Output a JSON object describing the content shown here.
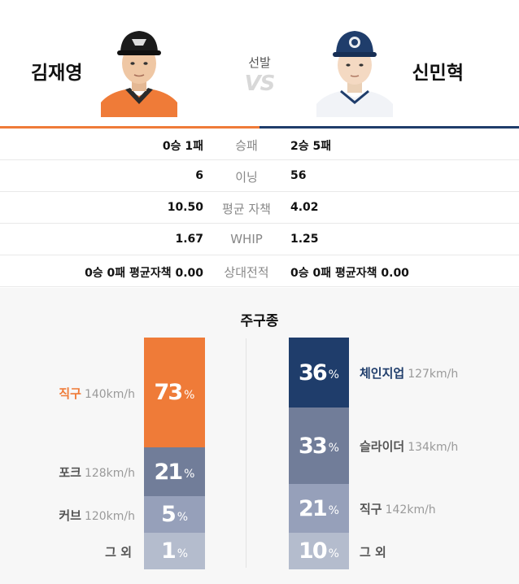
{
  "header": {
    "center_label": "선발",
    "vs_label": "VS",
    "left_player": {
      "name": "김재영",
      "team_color": "#ef7b38"
    },
    "right_player": {
      "name": "신민혁",
      "team_color": "#1f3d6b"
    }
  },
  "stats": [
    {
      "label": "승패",
      "left": "0승 1패",
      "right": "2승 5패"
    },
    {
      "label": "이닝",
      "left": "6",
      "right": "56"
    },
    {
      "label": "평균 자책",
      "left": "10.50",
      "right": "4.02"
    },
    {
      "label": "WHIP",
      "left": "1.67",
      "right": "1.25"
    },
    {
      "label": "상대전적",
      "left": "0승 0패 평균자책 0.00",
      "right": "0승 0패 평균자책 0.00"
    }
  ],
  "pitches": {
    "title": "주구종",
    "unit": "%",
    "left": [
      {
        "name": "직구",
        "speed": "140km/h",
        "percent": "73",
        "color": "#ef7b38",
        "label_color": "#ef7b38"
      },
      {
        "name": "포크",
        "speed": "128km/h",
        "percent": "21",
        "color": "#717d99",
        "label_color": "#555555"
      },
      {
        "name": "커브",
        "speed": "120km/h",
        "percent": "5",
        "color": "#96a0ba",
        "label_color": "#555555"
      },
      {
        "name": "그 외",
        "speed": "",
        "percent": "1",
        "color": "#b4bccd",
        "label_color": "#555555"
      }
    ],
    "right": [
      {
        "name": "체인지업",
        "speed": "127km/h",
        "percent": "36",
        "color": "#1f3d6b",
        "label_color": "#1f3d6b"
      },
      {
        "name": "슬라이더",
        "speed": "134km/h",
        "percent": "33",
        "color": "#717d99",
        "label_color": "#555555"
      },
      {
        "name": "직구",
        "speed": "142km/h",
        "percent": "21",
        "color": "#96a0ba",
        "label_color": "#555555"
      },
      {
        "name": "그 외",
        "speed": "",
        "percent": "10",
        "color": "#b4bccd",
        "label_color": "#555555"
      }
    ]
  }
}
